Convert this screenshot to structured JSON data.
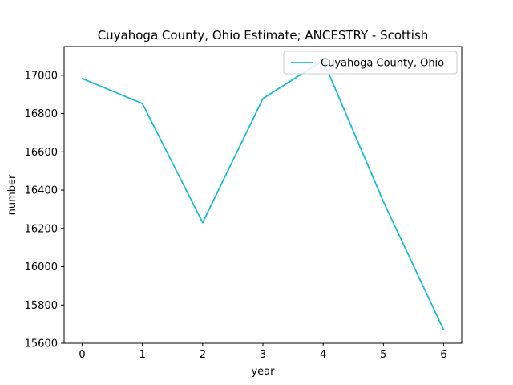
{
  "chart_data": {
    "type": "line",
    "title": "Cuyahoga County, Ohio Estimate; ANCESTRY - Scottish",
    "xlabel": "year",
    "ylabel": "number",
    "x": [
      0,
      1,
      2,
      3,
      4,
      5,
      6
    ],
    "series": [
      {
        "name": "Cuyahoga County, Ohio",
        "color": "#17becf",
        "values": [
          16983,
          16852,
          16230,
          16878,
          17078,
          16340,
          15670
        ]
      }
    ],
    "xlim": [
      -0.3,
      6.3
    ],
    "ylim": [
      15600,
      17150
    ],
    "xticks": [
      0,
      1,
      2,
      3,
      4,
      5,
      6
    ],
    "yticks": [
      15600,
      15800,
      16000,
      16200,
      16400,
      16600,
      16800,
      17000
    ],
    "grid": false,
    "legend_position": "top-right"
  }
}
